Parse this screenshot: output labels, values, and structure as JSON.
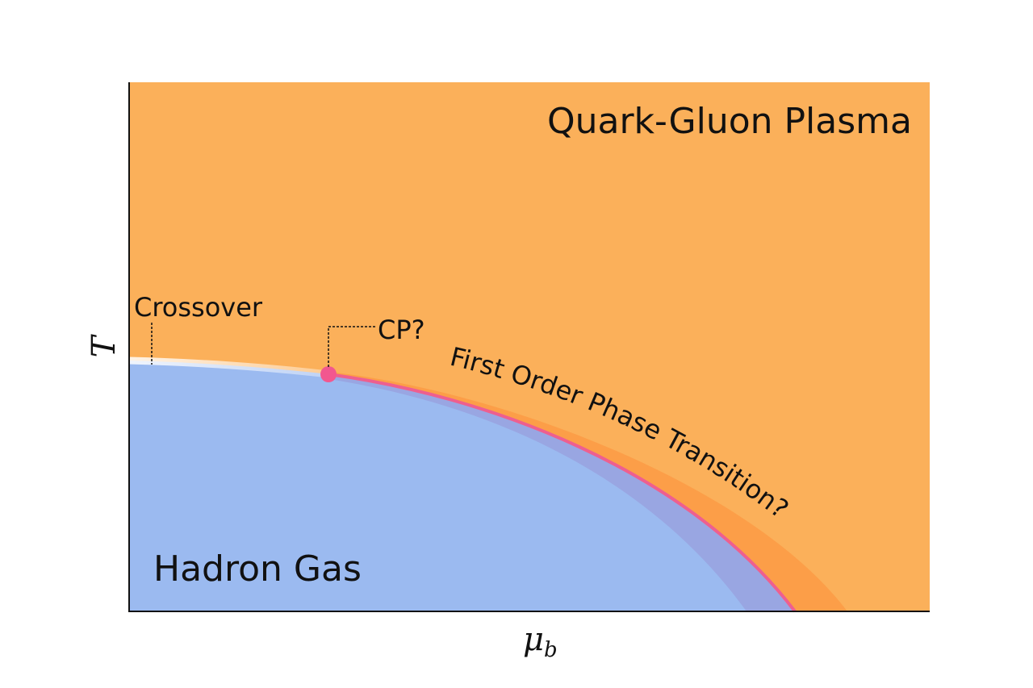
{
  "regions": {
    "top": "Quark-Gluon Plasma",
    "bottom": "Hadron Gas"
  },
  "annotations": {
    "crossover": "Crossover",
    "critical_point": "CP?",
    "first_order": "First Order Phase Transition?"
  },
  "axes": {
    "y_label": "T",
    "x_label": {
      "symbol": "μ",
      "subscript": "b"
    }
  }
}
